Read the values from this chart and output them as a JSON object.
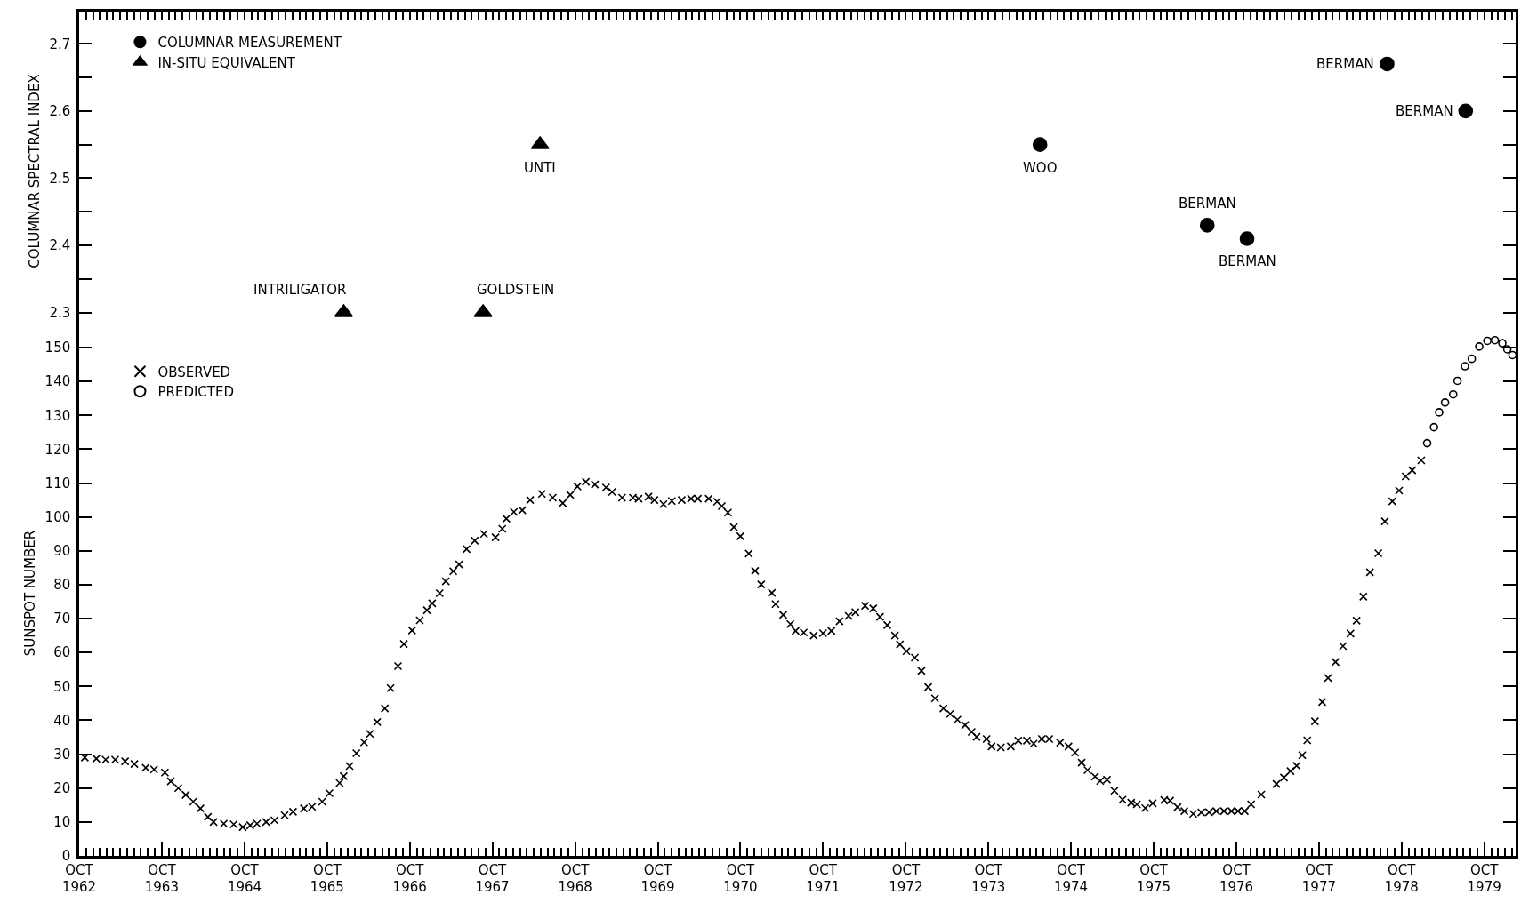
{
  "chart_data": [
    {
      "type": "scatter",
      "ylabel": "COLUMNAR SPECTRAL INDEX",
      "xlim": [
        "1962-10-01",
        "1980-02-17"
      ],
      "ylim": [
        2.273,
        2.748
      ],
      "xticks": [
        {
          "value": "1962-10-01",
          "label": null
        },
        {
          "value": "1963-10-01",
          "label": null
        },
        {
          "value": "1964-10-01",
          "label": null
        },
        {
          "value": "1965-10-01",
          "label": null
        },
        {
          "value": "1966-10-01",
          "label": null
        },
        {
          "value": "1967-10-01",
          "label": null
        },
        {
          "value": "1968-10-01",
          "label": null
        },
        {
          "value": "1969-10-01",
          "label": null
        },
        {
          "value": "1970-10-01",
          "label": null
        },
        {
          "value": "1971-10-01",
          "label": null
        },
        {
          "value": "1972-10-01",
          "label": null
        },
        {
          "value": "1973-10-01",
          "label": null
        },
        {
          "value": "1974-10-01",
          "label": null
        },
        {
          "value": "1975-10-01",
          "label": null
        },
        {
          "value": "1976-10-01",
          "label": null
        },
        {
          "value": "1977-10-01",
          "label": null
        },
        {
          "value": "1978-10-01",
          "label": null
        },
        {
          "value": "1979-10-01",
          "label": null
        }
      ],
      "yticks": [
        2.3,
        {
          "value": 2.35,
          "label": null
        },
        2.4,
        {
          "value": 2.45,
          "label": null
        },
        2.5,
        {
          "value": 2.55,
          "label": null
        },
        2.6,
        {
          "value": 2.65,
          "label": null
        },
        2.7
      ],
      "tick_labels": "y",
      "grid": false,
      "legend": "top left",
      "series": [
        {
          "name": "COLUMNAR MEASUREMENT",
          "color": "#000000",
          "marker": "circle",
          "x": [
            "1974-05-17",
            "1976-05-25",
            "1976-11-17",
            "1978-07-29",
            "1979-07-11"
          ],
          "values": [
            2.55,
            2.43,
            2.41,
            2.67,
            2.6
          ]
        },
        {
          "name": "IN-SITU EQUIVALENT",
          "color": "#000000",
          "marker": "triangle",
          "x": [
            "1965-12-13",
            "1967-08-21",
            "1968-04-29"
          ],
          "values": [
            2.3,
            2.3,
            2.55
          ]
        }
      ],
      "annotations": [
        {
          "text": "INTRILIGATOR",
          "x": "1965-12-13",
          "y": 2.3
        },
        {
          "text": "GOLDSTEIN",
          "x": "1967-08-21",
          "y": 2.3
        },
        {
          "text": "UNTI",
          "x": "1968-04-29",
          "y": 2.55
        },
        {
          "text": "WOO",
          "x": "1974-05-17",
          "y": 2.55
        },
        {
          "text": "BERMAN",
          "x": "1976-05-25",
          "y": 2.43
        },
        {
          "text": "BERMAN",
          "x": "1976-11-17",
          "y": 2.41
        },
        {
          "text": "BERMAN",
          "x": "1978-07-29",
          "y": 2.67
        },
        {
          "text": "BERMAN",
          "x": "1979-07-11",
          "y": 2.6
        }
      ]
    },
    {
      "type": "scatter",
      "ylabel": "SUNSPOT NUMBER",
      "xlim": [
        "1962-10-01",
        "1980-02-17"
      ],
      "ylim": [
        0,
        155
      ],
      "xticks": [
        {
          "value": "1962-10-01",
          "label": "OCT\n1962"
        },
        {
          "value": "1963-10-01",
          "label": "OCT\n1963"
        },
        {
          "value": "1964-10-01",
          "label": "OCT\n1964"
        },
        {
          "value": "1965-10-01",
          "label": "OCT\n1965"
        },
        {
          "value": "1966-10-01",
          "label": "OCT\n1966"
        },
        {
          "value": "1967-10-01",
          "label": "OCT\n1967"
        },
        {
          "value": "1968-10-01",
          "label": "OCT\n1968"
        },
        {
          "value": "1969-10-01",
          "label": "OCT\n1969"
        },
        {
          "value": "1970-10-01",
          "label": "OCT\n1970"
        },
        {
          "value": "1971-10-01",
          "label": "OCT\n1971"
        },
        {
          "value": "1972-10-01",
          "label": "OCT\n1972"
        },
        {
          "value": "1973-10-01",
          "label": "OCT\n1973"
        },
        {
          "value": "1974-10-01",
          "label": "OCT\n1974"
        },
        {
          "value": "1975-10-01",
          "label": "OCT\n1975"
        },
        {
          "value": "1976-10-01",
          "label": "OCT\n1976"
        },
        {
          "value": "1977-10-01",
          "label": "OCT\n1977"
        },
        {
          "value": "1978-10-01",
          "label": "OCT\n1978"
        },
        {
          "value": "1979-10-01",
          "label": "OCT\n1979"
        }
      ],
      "yticks": [
        0,
        10,
        20,
        30,
        40,
        50,
        60,
        70,
        80,
        90,
        100,
        110,
        120,
        130,
        140,
        150
      ],
      "grid": false,
      "legend": "top left",
      "series": [
        {
          "name": "OBSERVED",
          "color": "#000000",
          "marker": "cross",
          "x": [
            "1962-10-26",
            "1962-12-16",
            "1963-01-26",
            "1963-03-09",
            "1963-04-22",
            "1963-06-02",
            "1963-07-22",
            "1963-08-28",
            "1963-10-15",
            "1963-11-10",
            "1963-12-13",
            "1964-01-15",
            "1964-02-17",
            "1964-03-20",
            "1964-04-22",
            "1964-05-17",
            "1964-07-01",
            "1964-08-14",
            "1964-09-23",
            "1964-10-26",
            "1964-11-25",
            "1965-01-04",
            "1965-02-10",
            "1965-03-27",
            "1965-05-03",
            "1965-06-20",
            "1965-07-26",
            "1965-09-09",
            "1965-10-11",
            "1965-11-25",
            "1965-12-13",
            "1966-01-08",
            "1966-02-07",
            "1966-03-13",
            "1966-04-08",
            "1966-05-10",
            "1966-06-13",
            "1966-07-08",
            "1966-08-10",
            "1966-09-05",
            "1966-10-11",
            "1966-11-14",
            "1966-12-16",
            "1967-01-08",
            "1967-02-10",
            "1967-03-09",
            "1967-04-11",
            "1967-05-07",
            "1967-06-09",
            "1967-07-15",
            "1967-08-25",
            "1967-10-15",
            "1967-11-14",
            "1967-12-02",
            "1968-01-04",
            "1968-02-10",
            "1968-03-16",
            "1968-05-07",
            "1968-06-24",
            "1968-08-07",
            "1968-09-09",
            "1968-10-11",
            "1968-11-17",
            "1968-12-27",
            "1969-02-14",
            "1969-03-13",
            "1969-04-26",
            "1969-06-13",
            "1969-07-08",
            "1969-08-21",
            "1969-09-16",
            "1969-10-26",
            "1969-12-02",
            "1970-01-15",
            "1970-02-25",
            "1970-03-27",
            "1970-05-14",
            "1970-06-20",
            "1970-07-11",
            "1970-08-07",
            "1970-09-02",
            "1970-10-01",
            "1970-11-07",
            "1970-12-05",
            "1971-01-01",
            "1971-02-17",
            "1971-03-05",
            "1971-04-08",
            "1971-05-10",
            "1971-06-02",
            "1971-07-08",
            "1971-08-21",
            "1971-10-01",
            "1971-11-07",
            "1971-12-13",
            "1972-01-22",
            "1972-02-21",
            "1972-04-04",
            "1972-05-10",
            "1972-06-09",
            "1972-07-11",
            "1972-08-14",
            "1972-09-05",
            "1972-10-04",
            "1972-11-10",
            "1972-12-09",
            "1973-01-08",
            "1973-02-07",
            "1973-03-16",
            "1973-04-15",
            "1973-05-17",
            "1973-06-20",
            "1973-07-19",
            "1973-08-10",
            "1973-09-23",
            "1973-10-15",
            "1973-11-25",
            "1974-01-08",
            "1974-02-10",
            "1974-03-20",
            "1974-04-19",
            "1974-05-25",
            "1974-06-27",
            "1974-08-14",
            "1974-09-20",
            "1974-10-19",
            "1974-11-17",
            "1974-12-13",
            "1975-01-15",
            "1975-02-07",
            "1975-03-09",
            "1975-04-11",
            "1975-05-17",
            "1975-06-24",
            "1975-07-19",
            "1975-08-25",
            "1975-09-27",
            "1975-11-17",
            "1975-12-13",
            "1976-01-15",
            "1976-02-14",
            "1976-03-24",
            "1976-04-29",
            "1976-06-02",
            "1976-07-04",
            "1976-08-07",
            "1976-09-09",
            "1976-10-08",
            "1976-11-07",
            "1976-12-05",
            "1977-01-19",
            "1977-03-27",
            "1977-04-29",
            "1977-05-28",
            "1977-06-24",
            "1977-07-19",
            "1977-08-10",
            "1977-09-13",
            "1977-10-15",
            "1977-11-10",
            "1977-12-13",
            "1978-01-15",
            "1978-02-17",
            "1978-03-16",
            "1978-04-15",
            "1978-05-14",
            "1978-06-20",
            "1978-07-19",
            "1978-08-21",
            "1978-09-20",
            "1978-10-19",
            "1978-11-17",
            "1978-12-27"
          ],
          "values": [
            29,
            28.7,
            28.4,
            28.4,
            27.9,
            27.1,
            26,
            25.5,
            24.6,
            22,
            20,
            18,
            16,
            14,
            11.5,
            10,
            9.5,
            9.3,
            8.5,
            9,
            9.5,
            10,
            10.5,
            12,
            13,
            14,
            14.5,
            16,
            18.5,
            21.5,
            23.5,
            26.5,
            30.3,
            33.5,
            36,
            39.5,
            43.5,
            49.5,
            56,
            62.5,
            66.5,
            69.5,
            72.5,
            74.5,
            77.5,
            81,
            84,
            86,
            90.5,
            93,
            95,
            94,
            96.5,
            99.5,
            101.5,
            102,
            105,
            106.8,
            105.7,
            104.1,
            106.5,
            109,
            110.4,
            109.6,
            108.7,
            107.4,
            105.7,
            105.7,
            105.4,
            106,
            105,
            103.8,
            104.7,
            105,
            105.4,
            105.4,
            105.4,
            104.5,
            103.2,
            101.3,
            97,
            94.3,
            89.2,
            84.1,
            80.1,
            77.6,
            74.3,
            71.1,
            68.4,
            66.4,
            65.9,
            65,
            65.7,
            66.4,
            69.2,
            70.8,
            71.9,
            73.8,
            73,
            70.5,
            68.1,
            65,
            62.4,
            60.4,
            58.5,
            54.6,
            49.8,
            46.5,
            43.5,
            41.9,
            40.2,
            38.6,
            36.6,
            35.1,
            34.5,
            32.3,
            32,
            32.3,
            34,
            34,
            33.1,
            34.5,
            34.5,
            33.4,
            32.3,
            30.5,
            27.5,
            25.3,
            23.4,
            22.1,
            22.5,
            19.2,
            16.6,
            15.7,
            15.2,
            14.1,
            15.5,
            16.5,
            16.3,
            14.4,
            13.2,
            12.4,
            12.8,
            12.9,
            13.2,
            13.2,
            13.2,
            13.2,
            13.2,
            15.2,
            18.1,
            21.2,
            23.1,
            25,
            26.6,
            29.7,
            34.1,
            39.7,
            45.4,
            52.5,
            57.2,
            61.9,
            65.6,
            69.4,
            76.5,
            83.7,
            89.3,
            98.7,
            104.6,
            107.8,
            112,
            113.8,
            116.7
          ]
        },
        {
          "name": "PREDICTED",
          "color": "#000000",
          "marker": "circle-open",
          "x": [
            "1979-01-22",
            "1979-02-21",
            "1979-03-16",
            "1979-04-11",
            "1979-05-17",
            "1979-06-05",
            "1979-07-08",
            "1979-08-07",
            "1979-09-09",
            "1979-10-15",
            "1979-11-17",
            "1979-12-20",
            "1980-01-11",
            "1980-02-03"
          ],
          "values": [
            121.8,
            126.5,
            130.9,
            133.8,
            136.2,
            140.2,
            144.5,
            146.7,
            150.3,
            152,
            152.2,
            151.3,
            149.5,
            147.8
          ]
        }
      ]
    }
  ]
}
